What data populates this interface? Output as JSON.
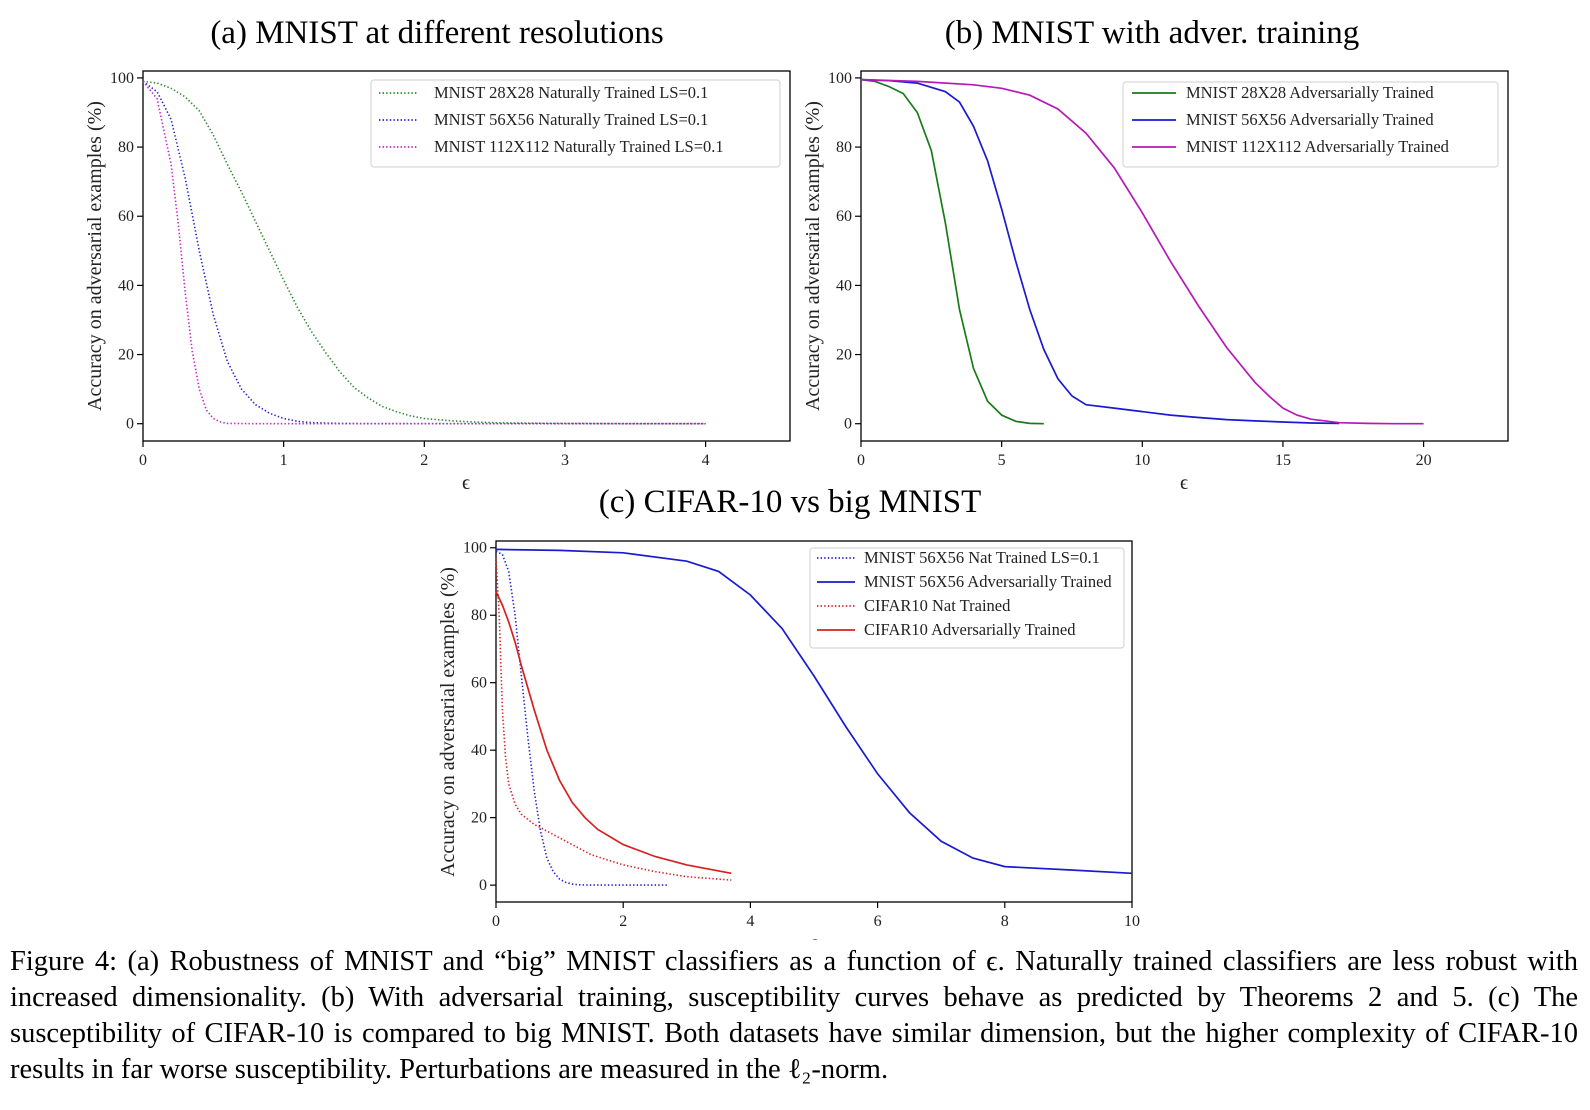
{
  "caption": {
    "label": "Figure 4:",
    "text": "(a) Robustness of MNIST and “big” MNIST classifiers as a function of ϵ. Naturally trained classifiers are less robust with increased dimensionality. (b) With adversarial training, susceptibility curves behave as predicted by Theorems 2 and 5. (c) The susceptibility of CIFAR-10 is compared to big MNIST. Both datasets have similar dimension, but the higher complexity of CIFAR-10 results in far worse susceptibility. Perturbations are measured in the ℓ₂-norm."
  },
  "chart_data": [
    {
      "type": "line",
      "title": "(a) MNIST at different resolutions",
      "xlabel": "ϵ",
      "ylabel": "Accuracy on adversarial examples (%)",
      "xlim": [
        0,
        4.6
      ],
      "ylim": [
        -5,
        102
      ],
      "xticks": [
        0,
        1,
        2,
        3,
        4
      ],
      "yticks": [
        0,
        20,
        40,
        60,
        80,
        100
      ],
      "grid": false,
      "legend": "top-right",
      "series": [
        {
          "name": "MNIST 28X28 Naturally Trained LS=0.1",
          "color": "#2a8a2a",
          "style": "dotted",
          "x": [
            0,
            0.1,
            0.2,
            0.3,
            0.4,
            0.5,
            0.6,
            0.7,
            0.8,
            0.9,
            1.0,
            1.1,
            1.2,
            1.3,
            1.4,
            1.5,
            1.6,
            1.7,
            1.8,
            1.9,
            2.0,
            2.2,
            2.4,
            2.6,
            3.0,
            3.5,
            4.0
          ],
          "y": [
            99,
            98.5,
            97,
            94.5,
            90.5,
            83.5,
            75,
            67,
            58.5,
            50,
            41.5,
            33.5,
            26.5,
            20.5,
            15,
            10.5,
            7.5,
            5,
            3.5,
            2.3,
            1.5,
            0.8,
            0.4,
            0.2,
            0.1,
            0,
            0
          ]
        },
        {
          "name": "MNIST 56X56 Naturally Trained LS=0.1",
          "color": "#2323c8",
          "style": "dotted",
          "x": [
            0,
            0.1,
            0.2,
            0.3,
            0.4,
            0.5,
            0.6,
            0.7,
            0.8,
            0.9,
            1.0,
            1.1,
            1.2,
            1.4,
            1.6,
            2.0,
            3.0,
            4.0
          ],
          "y": [
            99,
            96,
            88,
            71,
            50,
            31.5,
            18,
            10,
            5.5,
            3,
            1.5,
            0.7,
            0.3,
            0.1,
            0,
            0,
            0,
            0
          ],
          "x_note": "data units"
        },
        {
          "name": "MNIST 112X112 Naturally Trained LS=0.1",
          "color": "#c823c8",
          "style": "dotted",
          "x": [
            0,
            0.1,
            0.2,
            0.25,
            0.3,
            0.35,
            0.4,
            0.45,
            0.5,
            0.55,
            0.6,
            0.8,
            1.0,
            4.0
          ],
          "y": [
            99,
            94,
            75,
            58,
            38,
            21,
            10,
            4,
            1.5,
            0.5,
            0.1,
            0,
            0,
            0
          ]
        }
      ]
    },
    {
      "type": "line",
      "title": "(b) MNIST with adver. training",
      "xlabel": "ϵ",
      "ylabel": "Accuracy on adversarial examples (%)",
      "xlim": [
        0,
        23
      ],
      "ylim": [
        -5,
        102
      ],
      "xticks": [
        0,
        5,
        10,
        15,
        20
      ],
      "yticks": [
        0,
        20,
        40,
        60,
        80,
        100
      ],
      "grid": false,
      "legend": "top-right",
      "series": [
        {
          "name": "MNIST 28X28 Adversarially Trained",
          "color": "#1a7a1a",
          "style": "solid",
          "x": [
            0,
            0.5,
            1,
            1.5,
            2,
            2.5,
            3,
            3.5,
            4,
            4.5,
            5,
            5.5,
            6,
            6.5
          ],
          "y": [
            99.5,
            99,
            97.5,
            95.5,
            90,
            79,
            58,
            33,
            16,
            6.5,
            2.5,
            0.7,
            0.1,
            0
          ]
        },
        {
          "name": "MNIST 56X56 Adversarially Trained",
          "color": "#1a1ad0",
          "style": "solid",
          "x": [
            0,
            1,
            2,
            3,
            3.5,
            4,
            4.5,
            5,
            5.5,
            6,
            6.5,
            7,
            7.5,
            8,
            9,
            10,
            11,
            12,
            13,
            14,
            15,
            16,
            17
          ],
          "y": [
            99.5,
            99.2,
            98.5,
            96,
            93,
            86,
            76,
            62,
            47,
            33,
            21.5,
            13,
            8,
            5.5,
            4.5,
            3.5,
            2.5,
            1.8,
            1.2,
            0.8,
            0.5,
            0.2,
            0.1
          ]
        },
        {
          "name": "MNIST 112X112 Adversarially Trained",
          "color": "#b61ab6",
          "style": "solid",
          "x": [
            0,
            2,
            4,
            5,
            6,
            7,
            8,
            9,
            10,
            11,
            12,
            13,
            14,
            14.5,
            15,
            15.5,
            16,
            17,
            18,
            19,
            20
          ],
          "y": [
            99.5,
            99,
            98,
            97,
            95,
            91,
            84,
            74,
            61,
            47,
            34,
            22,
            12,
            8,
            4.5,
            2.5,
            1.3,
            0.3,
            0.1,
            0,
            0
          ]
        }
      ]
    },
    {
      "type": "line",
      "title": "(c) CIFAR-10 vs big MNIST",
      "xlabel": "ϵ",
      "ylabel": "Accuracy on adversarial examples (%)",
      "xlim": [
        0,
        10
      ],
      "ylim": [
        -5,
        102
      ],
      "xticks": [
        0,
        2,
        4,
        6,
        8,
        10
      ],
      "yticks": [
        0,
        20,
        40,
        60,
        80,
        100
      ],
      "grid": false,
      "legend": "top-right",
      "series": [
        {
          "name": "MNIST 56X56 Nat Trained LS=0.1",
          "color": "#2323c8",
          "style": "dotted",
          "x": [
            0,
            0.1,
            0.2,
            0.3,
            0.4,
            0.5,
            0.6,
            0.7,
            0.8,
            0.9,
            1.0,
            1.1,
            1.2,
            1.3,
            1.5,
            2.0,
            2.7
          ],
          "y": [
            99,
            98,
            93,
            80,
            62,
            44,
            28,
            16,
            8,
            4,
            1.8,
            0.8,
            0.3,
            0.1,
            0,
            0,
            0
          ]
        },
        {
          "name": "MNIST 56X56 Adversarially Trained",
          "color": "#1a1ad0",
          "style": "solid",
          "x": [
            0,
            1,
            2,
            3,
            3.5,
            4,
            4.5,
            5,
            5.5,
            6,
            6.5,
            7,
            7.5,
            8,
            9,
            10
          ],
          "y": [
            99.5,
            99.2,
            98.5,
            96,
            93,
            86,
            76,
            62,
            47,
            33,
            21.5,
            13,
            8,
            5.5,
            4.5,
            3.5
          ]
        },
        {
          "name": "CIFAR10 Nat Trained",
          "color": "#d82020",
          "style": "dotted",
          "x": [
            0,
            0.05,
            0.1,
            0.15,
            0.2,
            0.3,
            0.4,
            0.6,
            0.8,
            1.0,
            1.5,
            2.0,
            2.5,
            3.0,
            3.7
          ],
          "y": [
            97,
            80,
            52,
            38,
            30,
            24,
            21,
            18,
            16,
            14,
            9,
            6,
            4,
            2.5,
            1.5
          ]
        },
        {
          "name": "CIFAR10 Adversarially Trained",
          "color": "#d82020",
          "style": "solid",
          "x": [
            0,
            0.1,
            0.2,
            0.3,
            0.4,
            0.6,
            0.8,
            1.0,
            1.2,
            1.4,
            1.6,
            2.0,
            2.5,
            3.0,
            3.7
          ],
          "y": [
            87,
            83,
            78,
            72,
            65,
            52,
            40,
            31,
            24.5,
            20,
            16.5,
            12,
            8.5,
            6,
            3.5
          ]
        }
      ]
    }
  ]
}
